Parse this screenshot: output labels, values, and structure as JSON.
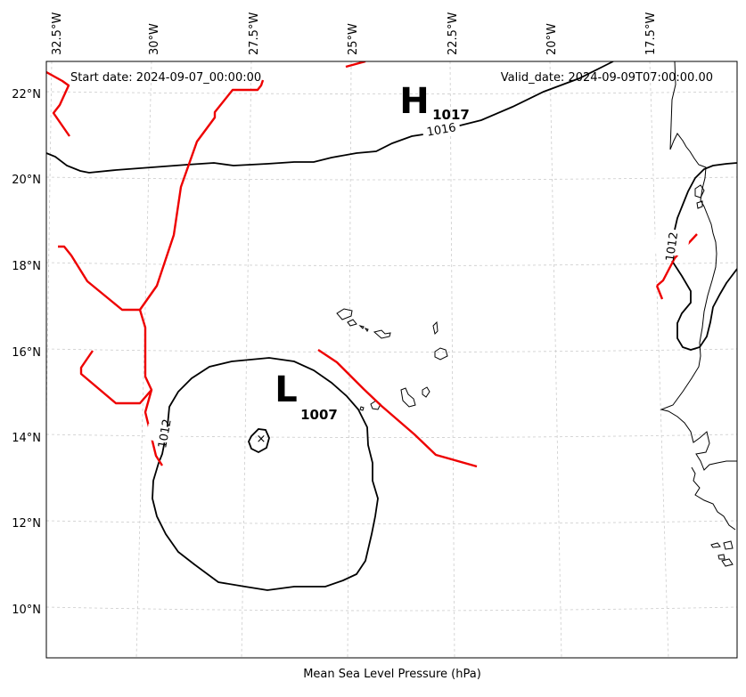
{
  "header": {
    "start_date": "Start date: 2024-09-07_00:00:00",
    "valid_date": "Valid_date: 2024-09-09T07:00:00.00"
  },
  "caption": "Mean Sea Level Pressure (hPa)",
  "lon_labels": [
    "32.5°W",
    "30°W",
    "27.5°W",
    "25°W",
    "22.5°W",
    "20°W",
    "17.5°W"
  ],
  "lat_labels": [
    "22°N",
    "20°N",
    "18°N",
    "16°N",
    "14°N",
    "12°N",
    "10°N"
  ],
  "isobars": {
    "north": "1016",
    "low": "1012",
    "east": "1012"
  },
  "pressure_centers": {
    "high": {
      "symbol": "H",
      "value": "1017"
    },
    "low": {
      "symbol": "L",
      "value": "1007"
    },
    "low_marker": "×"
  },
  "colors": {
    "isobar": "#000000",
    "front": "#ee0000",
    "grid": "#cccccc",
    "coast": "#000000"
  }
}
